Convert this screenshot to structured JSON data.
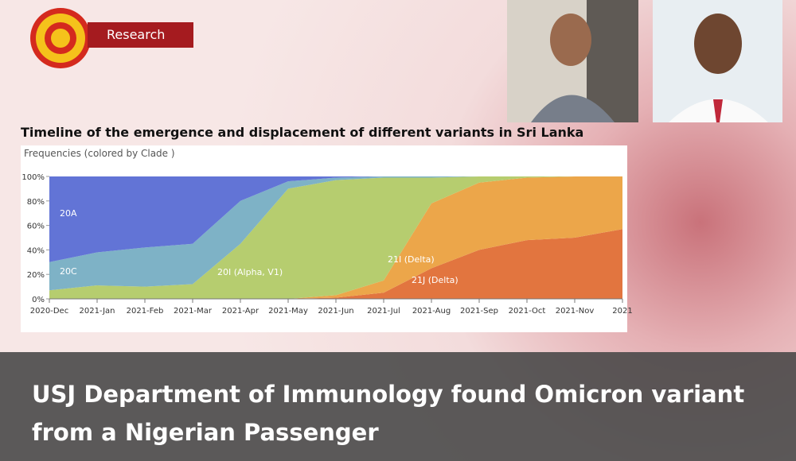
{
  "badge": "Research",
  "chart_data": {
    "type": "area",
    "stacked": true,
    "title": "Timeline of the emergence and displacement of different variants in Sri Lanka",
    "y_label": "Frequencies (colored by Clade )",
    "categories": [
      "2020-Dec",
      "2021-Jan",
      "2021-Feb",
      "2021-Mar",
      "2021-Apr",
      "2021-May",
      "2021-Jun",
      "2021-Jul",
      "2021-Aug",
      "2021-Sep",
      "2021-Oct",
      "2021-Nov",
      "2021"
    ],
    "ylim": [
      0,
      100
    ],
    "yticks": [
      {
        "value": 0,
        "label": "0%"
      },
      {
        "value": 20,
        "label": "20%"
      },
      {
        "value": 40,
        "label": "40%"
      },
      {
        "value": 60,
        "label": "60%"
      },
      {
        "value": 80,
        "label": "80%"
      },
      {
        "value": 100,
        "label": "100%"
      }
    ],
    "series": [
      {
        "name": "21J (Delta)",
        "color": "#e2753f",
        "values": [
          0,
          0,
          0,
          0,
          0,
          0,
          1,
          5,
          25,
          40,
          48,
          50,
          57
        ]
      },
      {
        "name": "21I (Delta)",
        "color": "#eca64a",
        "values": [
          0,
          0,
          0,
          0,
          0,
          0,
          2,
          10,
          53,
          55,
          51,
          50,
          43
        ]
      },
      {
        "name": "20I (Alpha, V1)",
        "color": "#b6cd6f",
        "values": [
          7,
          11,
          10,
          12,
          45,
          90,
          94,
          84,
          21,
          5,
          1,
          0,
          0
        ]
      },
      {
        "name": "20C",
        "color": "#7eb2c6",
        "values": [
          23,
          27,
          32,
          33,
          35,
          6,
          2,
          1,
          1,
          0,
          0,
          0,
          0
        ]
      },
      {
        "name": "20A",
        "color": "#6274d6",
        "values": [
          70,
          62,
          58,
          55,
          20,
          4,
          1,
          0,
          0,
          0,
          0,
          0,
          0
        ]
      }
    ]
  },
  "headline": {
    "lines": [
      "USJ Department of Immunology found Omicron variant",
      "from a Nigerian Passenger"
    ]
  }
}
